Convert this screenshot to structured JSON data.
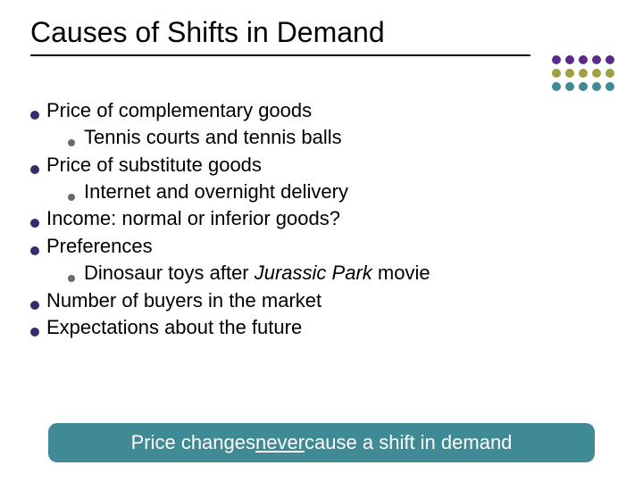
{
  "title": "Causes of Shifts in Demand",
  "colors": {
    "bullet_lvl1": "#3b2a6b",
    "bullet_lvl2": "#6a6a6a",
    "callout_bg": "#3f8a94",
    "callout_text": "#ffffff",
    "dot_rows": [
      "#5a2a88",
      "#a0a040",
      "#3f8a94"
    ],
    "underline": "#000000",
    "text": "#000000"
  },
  "decorative_dots": {
    "rows": 3,
    "cols": 5
  },
  "bullets": [
    {
      "text": "Price of complementary goods",
      "children": [
        {
          "text": "Tennis courts and tennis balls"
        }
      ]
    },
    {
      "text": "Price of substitute goods",
      "children": [
        {
          "text": "Internet and overnight delivery"
        }
      ]
    },
    {
      "text": "Income:  normal or inferior goods?"
    },
    {
      "text": "Preferences",
      "children": [
        {
          "text_parts": [
            "Dinosaur toys after ",
            {
              "italic": "Jurassic Park"
            },
            " movie"
          ]
        }
      ]
    },
    {
      "text": "Number of buyers in the market"
    },
    {
      "text": "Expectations about the future"
    }
  ],
  "callout": {
    "prefix": "Price changes ",
    "emphasis": "never",
    "suffix": " cause a shift in demand"
  }
}
